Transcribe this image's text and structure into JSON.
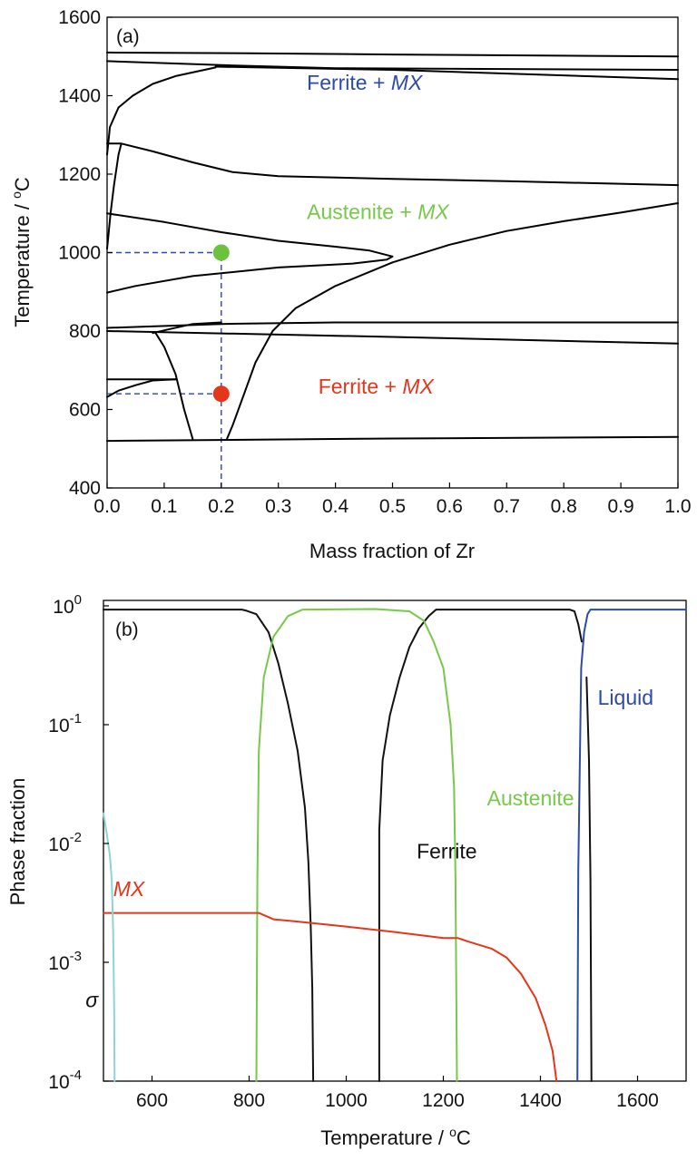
{
  "chart_data": [
    {
      "panel": "(a)",
      "type": "line",
      "chart_kind": "phase diagram",
      "xlabel": "Mass fraction of Zr",
      "ylabel": "Temperature / °C",
      "ylabel_parts": {
        "main": "Temperature / ",
        "sup": "o",
        "unit": "C"
      },
      "xlim": [
        0,
        1.0
      ],
      "ylim": [
        400,
        1600
      ],
      "xticks": [
        "0.0",
        "0.1",
        "0.2",
        "0.3",
        "0.4",
        "0.5",
        "0.6",
        "0.7",
        "0.8",
        "0.9",
        "1.0"
      ],
      "yticks": [
        "400",
        "600",
        "800",
        "1000",
        "1200",
        "1400",
        "1600"
      ],
      "grid": false,
      "boundaries": [
        [
          [
            0,
            1510
          ],
          [
            0.25,
            1508
          ],
          [
            0.5,
            1505
          ],
          [
            1.0,
            1500
          ]
        ],
        [
          [
            0,
            1488
          ],
          [
            0.2,
            1478
          ],
          [
            0.4,
            1470
          ],
          [
            1.0,
            1466
          ]
        ],
        [
          [
            0.19,
            1474
          ],
          [
            0.5,
            1466
          ],
          [
            1.0,
            1442
          ]
        ],
        [
          [
            0,
            1250
          ],
          [
            0.005,
            1320
          ],
          [
            0.02,
            1370
          ],
          [
            0.045,
            1400
          ],
          [
            0.08,
            1430
          ],
          [
            0.12,
            1450
          ],
          [
            0.19,
            1472
          ]
        ],
        [
          [
            0.0,
            1278
          ],
          [
            0.025,
            1278
          ],
          [
            0.08,
            1258
          ],
          [
            0.15,
            1230
          ],
          [
            0.22,
            1205
          ],
          [
            0.3,
            1195
          ],
          [
            0.5,
            1188
          ],
          [
            0.7,
            1182
          ],
          [
            1.0,
            1172
          ]
        ],
        [
          [
            0.0,
            1010
          ],
          [
            0.002,
            1040
          ],
          [
            0.006,
            1100
          ],
          [
            0.012,
            1170
          ],
          [
            0.02,
            1250
          ],
          [
            0.025,
            1278
          ]
        ],
        [
          [
            0.0,
            1100
          ],
          [
            0.1,
            1078
          ],
          [
            0.2,
            1052
          ],
          [
            0.3,
            1030
          ],
          [
            0.4,
            1015
          ],
          [
            0.46,
            1005
          ],
          [
            0.5,
            990
          ],
          [
            0.49,
            982
          ],
          [
            0.43,
            972
          ],
          [
            0.3,
            962
          ],
          [
            0.15,
            940
          ],
          [
            0.05,
            915
          ],
          [
            0.0,
            898
          ]
        ],
        [
          [
            0.21,
            525
          ],
          [
            0.22,
            560
          ],
          [
            0.24,
            640
          ],
          [
            0.26,
            720
          ],
          [
            0.29,
            800
          ],
          [
            0.33,
            858
          ],
          [
            0.4,
            915
          ],
          [
            0.5,
            975
          ],
          [
            0.6,
            1020
          ],
          [
            0.7,
            1055
          ],
          [
            0.8,
            1080
          ],
          [
            0.9,
            1102
          ],
          [
            1.0,
            1126
          ]
        ],
        [
          [
            0.0,
            808
          ],
          [
            0.2,
            818
          ],
          [
            0.4,
            822
          ],
          [
            1.0,
            822
          ]
        ],
        [
          [
            0.0,
            800
          ],
          [
            0.5,
            785
          ],
          [
            1.0,
            768
          ]
        ],
        [
          [
            0.08,
            795
          ],
          [
            0.11,
            805
          ],
          [
            0.15,
            818
          ],
          [
            0.2,
            822
          ]
        ],
        [
          [
            0.0,
            632
          ],
          [
            0.02,
            648
          ],
          [
            0.05,
            662
          ],
          [
            0.08,
            674
          ],
          [
            0.12,
            677
          ]
        ],
        [
          [
            0.0,
            677
          ],
          [
            0.12,
            677
          ]
        ],
        [
          [
            0.085,
            795
          ],
          [
            0.1,
            760
          ],
          [
            0.12,
            690
          ],
          [
            0.135,
            600
          ],
          [
            0.15,
            525
          ]
        ],
        [
          [
            0.0,
            520
          ],
          [
            0.5,
            526
          ],
          [
            1.0,
            530
          ]
        ]
      ],
      "annotations": [
        {
          "label": "Ferrite + ",
          "italic": "MX",
          "color": "#2d4aa8",
          "x": 0.35,
          "y": 1415
        },
        {
          "label": "Austenite + ",
          "italic": "MX",
          "color": "#77c94a",
          "x": 0.35,
          "y": 1085
        },
        {
          "label": "Ferrite + ",
          "italic": "MX",
          "color": "#e5361a",
          "x": 0.37,
          "y": 640
        }
      ],
      "markers": [
        {
          "x": 0.2,
          "y": 1000,
          "color": "#6cc23c"
        },
        {
          "x": 0.2,
          "y": 640,
          "color": "#e5361a"
        }
      ],
      "guides": [
        {
          "from": [
            0,
            1000
          ],
          "to": [
            0.2,
            1000
          ]
        },
        {
          "from": [
            0,
            640
          ],
          "to": [
            0.2,
            640
          ]
        },
        {
          "from": [
            0.2,
            400
          ],
          "to": [
            0.2,
            1000
          ]
        }
      ]
    },
    {
      "panel": "(b)",
      "type": "line",
      "xlabel": "Temperature / °C",
      "xlabel_parts": {
        "main": "Temperature / ",
        "sup": "o",
        "unit": "C"
      },
      "ylabel": "Phase fraction",
      "xlim": [
        500,
        1700
      ],
      "ylim": [
        0.0001,
        1.05
      ],
      "yscale": "log",
      "xticks": [
        "600",
        "800",
        "1000",
        "1200",
        "1400",
        "1600"
      ],
      "yticks": [
        {
          "base": "10",
          "exp": "0",
          "value": 1
        },
        {
          "base": "10",
          "exp": "-1",
          "value": 0.1
        },
        {
          "base": "10",
          "exp": "-2",
          "value": 0.01
        },
        {
          "base": "10",
          "exp": "-3",
          "value": 0.001
        },
        {
          "base": "10",
          "exp": "-4",
          "value": 0.0001
        }
      ],
      "grid": false,
      "series": [
        {
          "name": "Ferrite",
          "color": "#111111",
          "label_pos": [
            1145,
            0.0075
          ],
          "segments": [
            [
              [
                500,
                0.93
              ],
              [
                700,
                0.93
              ],
              [
                760,
                0.93
              ],
              [
                785,
                0.93
              ],
              [
                795,
                0.91
              ],
              [
                815,
                0.85
              ],
              [
                840,
                0.6
              ],
              [
                860,
                0.33
              ],
              [
                880,
                0.15
              ],
              [
                900,
                0.06
              ],
              [
                915,
                0.02
              ],
              [
                922,
                0.007
              ],
              [
                927,
                0.002
              ],
              [
                930,
                0.0006
              ],
              [
                932,
                0.0001
              ]
            ],
            [
              [
                1068,
                0.0001
              ],
              [
                1068,
                0.013
              ],
              [
                1075,
                0.05
              ],
              [
                1090,
                0.12
              ],
              [
                1110,
                0.25
              ],
              [
                1130,
                0.45
              ],
              [
                1150,
                0.65
              ],
              [
                1170,
                0.82
              ],
              [
                1185,
                0.93
              ],
              [
                1300,
                0.93
              ],
              [
                1460,
                0.93
              ],
              [
                1470,
                0.9
              ],
              [
                1478,
                0.7
              ],
              [
                1485,
                0.5
              ]
            ],
            [
              [
                1495,
                0.25
              ],
              [
                1500,
                0.05
              ],
              [
                1503,
                0.005
              ],
              [
                1505,
                0.0001
              ]
            ]
          ]
        },
        {
          "name": "Austenite",
          "color": "#77c94a",
          "label_pos": [
            1290,
            0.021
          ],
          "segments": [
            [
              [
                815,
                0.0001
              ],
              [
                817,
                0.005
              ],
              [
                820,
                0.06
              ],
              [
                830,
                0.25
              ],
              [
                850,
                0.55
              ],
              [
                880,
                0.82
              ],
              [
                910,
                0.93
              ],
              [
                1060,
                0.94
              ],
              [
                1130,
                0.9
              ],
              [
                1160,
                0.75
              ],
              [
                1180,
                0.5
              ],
              [
                1200,
                0.3
              ],
              [
                1215,
                0.1
              ],
              [
                1222,
                0.03
              ],
              [
                1225,
                0.005
              ],
              [
                1228,
                0.0001
              ]
            ]
          ]
        },
        {
          "name": "Liquid",
          "color": "#2d4aa8",
          "label_pos": [
            1518,
            0.147
          ],
          "segments": [
            [
              [
                1476,
                0.0001
              ],
              [
                1478,
                0.006
              ],
              [
                1484,
                0.3
              ],
              [
                1490,
                0.6
              ],
              [
                1497,
                0.85
              ],
              [
                1503,
                0.93
              ],
              [
                1700,
                0.93
              ]
            ]
          ]
        },
        {
          "name": "MX",
          "color": "#e5361a",
          "label_pos": [
            520,
            0.0036
          ],
          "italic": true,
          "segments": [
            [
              [
                500,
                0.0026
              ],
              [
                600,
                0.0026
              ],
              [
                700,
                0.0026
              ],
              [
                810,
                0.0026
              ],
              [
                820,
                0.0026
              ],
              [
                850,
                0.0023
              ],
              [
                900,
                0.0022
              ],
              [
                1000,
                0.002
              ],
              [
                1100,
                0.0018
              ],
              [
                1200,
                0.0016
              ],
              [
                1230,
                0.0016
              ],
              [
                1250,
                0.0015
              ],
              [
                1300,
                0.0013
              ],
              [
                1330,
                0.0011
              ],
              [
                1360,
                0.0008
              ],
              [
                1390,
                0.0005
              ],
              [
                1410,
                0.0003
              ],
              [
                1425,
                0.00018
              ],
              [
                1433,
                0.0001
              ]
            ]
          ]
        },
        {
          "name": "σ",
          "color": "#8fd3d8",
          "label_pos": [
            463,
            0.00042
          ],
          "italic": true,
          "segments": [
            [
              [
                500,
                0.018
              ],
              [
                507,
                0.012
              ],
              [
                513,
                0.008
              ],
              [
                517,
                0.005
              ],
              [
                520,
                0.0018
              ],
              [
                522,
                0.0004
              ],
              [
                523,
                0.0001
              ]
            ]
          ]
        }
      ]
    }
  ]
}
